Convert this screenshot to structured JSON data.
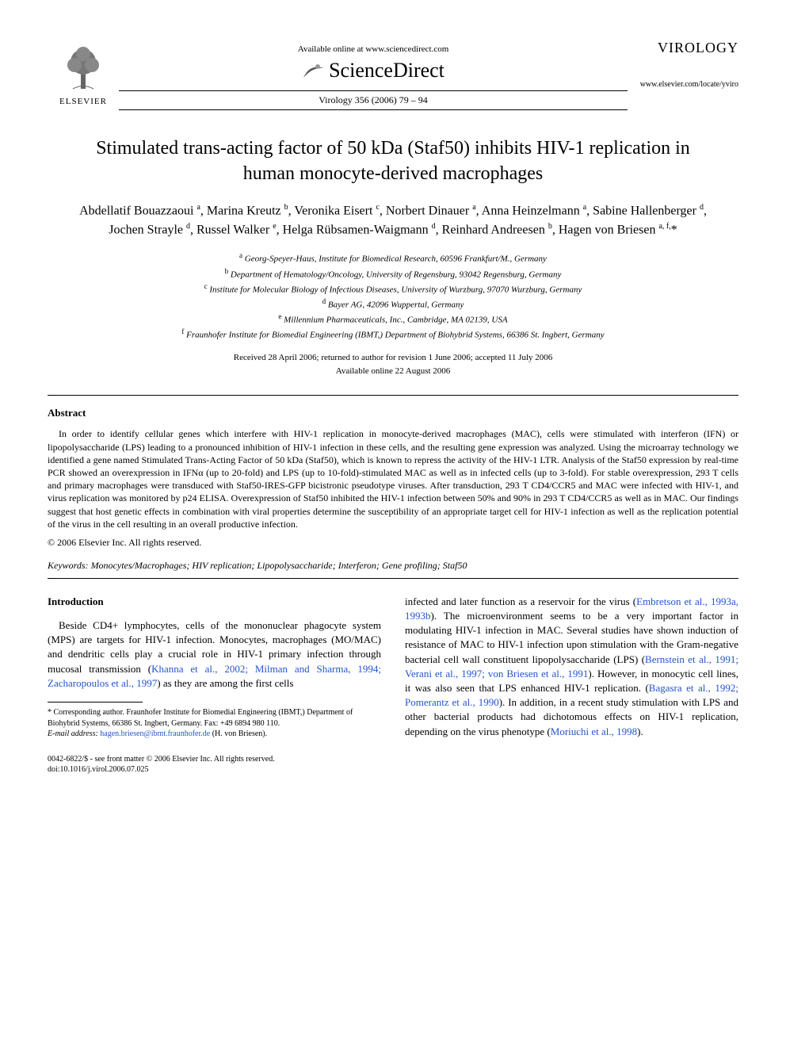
{
  "header": {
    "publisher_label": "ELSEVIER",
    "available_online": "Available online at www.sciencedirect.com",
    "sciencedirect": "ScienceDirect",
    "journal_ref": "Virology 356 (2006) 79 – 94",
    "journal_name": "VIROLOGY",
    "journal_url": "www.elsevier.com/locate/yviro"
  },
  "title": "Stimulated trans-acting factor of 50 kDa (Staf50) inhibits HIV-1 replication in human monocyte-derived macrophages",
  "authors_html": "Abdellatif Bouazzaoui <sup>a</sup>, Marina Kreutz <sup>b</sup>, Veronika Eisert <sup>c</sup>, Norbert Dinauer <sup>a</sup>, Anna Heinzelmann <sup>a</sup>, Sabine Hallenberger <sup>d</sup>, Jochen Strayle <sup>d</sup>, Russel Walker <sup>e</sup>, Helga Rübsamen-Waigmann <sup>d</sup>, Reinhard Andreesen <sup>b</sup>, Hagen von Briesen <sup>a, f,</sup>*",
  "affiliations": [
    "<sup>a</sup> Georg-Speyer-Haus, Institute for Biomedical Research, 60596 Frankfurt/M., Germany",
    "<sup>b</sup> Department of Hematology/Oncology, University of Regensburg, 93042 Regensburg, Germany",
    "<sup>c</sup> Institute for Molecular Biology of Infectious Diseases, University of Wurzburg, 97070 Wurzburg, Germany",
    "<sup>d</sup> Bayer AG, 42096 Wuppertal, Germany",
    "<sup>e</sup> Millennium Pharmaceuticals, Inc., Cambridge, MA 02139, USA",
    "<sup>f</sup> Fraunhofer Institute for Biomedial Engineering (IBMT,) Department of Biohybrid Systems, 66386 St. Ingbert, Germany"
  ],
  "dates": {
    "received": "Received 28 April 2006; returned to author for revision 1 June 2006; accepted 11 July 2006",
    "online": "Available online 22 August 2006"
  },
  "abstract": {
    "heading": "Abstract",
    "body": "In order to identify cellular genes which interfere with HIV-1 replication in monocyte-derived macrophages (MAC), cells were stimulated with interferon (IFN) or lipopolysaccharide (LPS) leading to a pronounced inhibition of HIV-1 infection in these cells, and the resulting gene expression was analyzed. Using the microarray technology we identified a gene named Stimulated Trans-Acting Factor of 50 kDa (Staf50), which is known to repress the activity of the HIV-1 LTR. Analysis of the Staf50 expression by real-time PCR showed an overexpression in IFNα (up to 20-fold) and LPS (up to 10-fold)-stimulated MAC as well as in infected cells (up to 3-fold). For stable overexpression, 293 T cells and primary macrophages were transduced with Staf50-IRES-GFP bicistronic pseudotype viruses. After transduction, 293 T CD4/CCR5 and MAC were infected with HIV-1, and virus replication was monitored by p24 ELISA. Overexpression of Staf50 inhibited the HIV-1 infection between 50% and 90% in 293 T CD4/CCR5 as well as in MAC. Our findings suggest that host genetic effects in combination with viral properties determine the susceptibility of an appropriate target cell for HIV-1 infection as well as the replication potential of the virus in the cell resulting in an overall productive infection.",
    "copyright": "© 2006 Elsevier Inc. All rights reserved."
  },
  "keywords": {
    "label": "Keywords:",
    "value": "Monocytes/Macrophages; HIV replication; Lipopolysaccharide; Interferon; Gene profiling; Staf50"
  },
  "introduction": {
    "heading": "Introduction",
    "left_para": "Beside CD4+ lymphocytes, cells of the mononuclear phagocyte system (MPS) are targets for HIV-1 infection. Monocytes, macrophages (MO/MAC) and dendritic cells play a crucial role in HIV-1 primary infection through mucosal transmission (",
    "left_link1": "Khanna et al., 2002; Milman and Sharma, 1994; Zacharopoulos et al., 1997",
    "left_after1": ") as they are among the first cells",
    "right_start": "infected and later function as a reservoir for the virus (",
    "right_link1": "Embretson et al., 1993a, 1993b",
    "right_after1": "). The microenvironment seems to be a very important factor in modulating HIV-1 infection in MAC. Several studies have shown induction of resistance of MAC to HIV-1 infection upon stimulation with the Gram-negative bacterial cell wall constituent lipopolysaccharide (LPS) (",
    "right_link2": "Bernstein et al., 1991; Verani et al., 1997; von Briesen et al., 1991",
    "right_after2": "). However, in monocytic cell lines, it was also seen that LPS enhanced HIV-1 replication. (",
    "right_link3": "Bagasra et al., 1992; Pomerantz et al., 1990",
    "right_after3": "). In addition, in a recent study stimulation with LPS and other bacterial products had dichotomous effects on HIV-1 replication, depending on the virus phenotype (",
    "right_link4": "Moriuchi et al., 1998",
    "right_after4": ")."
  },
  "footnote": {
    "corr": "* Corresponding author. Fraunhofer Institute for Biomedial Engineering (IBMT,) Department of Biohybrid Systems, 66386 St. Ingbert, Germany. Fax: +49 6894 980 110.",
    "email_label": "E-mail address:",
    "email": "hagen.briesen@ibmt.fraunhofer.de",
    "email_attr": "(H. von Briesen)."
  },
  "bottom": {
    "line1": "0042-6822/$ - see front matter © 2006 Elsevier Inc. All rights reserved.",
    "line2": "doi:10.1016/j.virol.2006.07.025"
  },
  "colors": {
    "link": "#2255cc",
    "text": "#000000",
    "background": "#ffffff"
  }
}
